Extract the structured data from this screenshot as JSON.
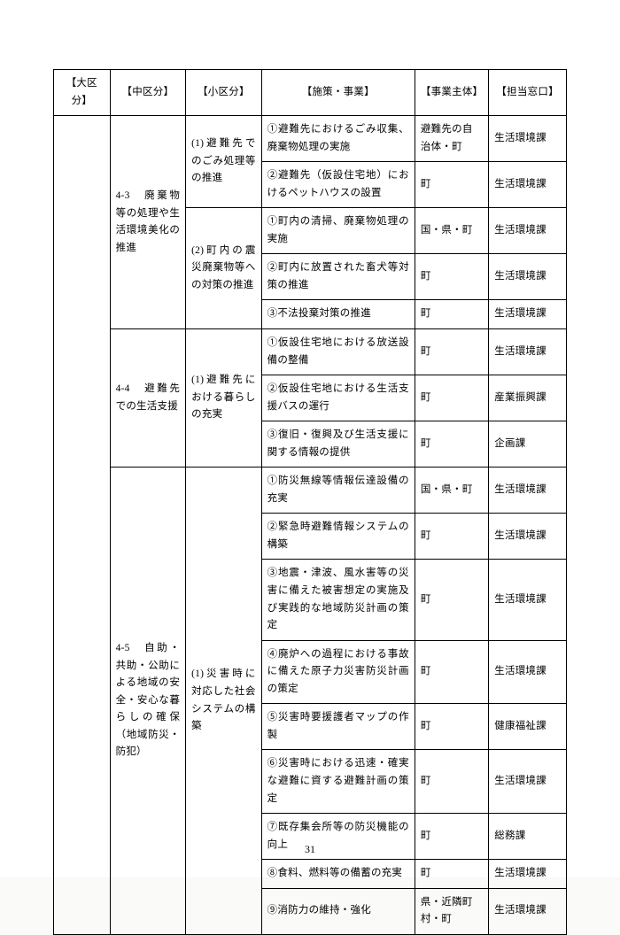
{
  "page_number": "31",
  "headers": {
    "large": "【大区分】",
    "mid": "【中区分】",
    "small": "【小区分】",
    "item": "【施策・事業】",
    "owner": "【事業主体】",
    "dept": "【担当窓口】"
  },
  "sections": [
    {
      "mid": "4-3　廃棄物等の処理や生活環境美化の推進",
      "subs": [
        {
          "small": "(1)避難先でのごみ処理等の推進",
          "rows": [
            {
              "item": "①避難先におけるごみ収集、廃棄物処理の実施",
              "owner": "避難先の自治体・町",
              "dept": "生活環境課"
            },
            {
              "item": "②避難先（仮設住宅地）におけるペットハウスの設置",
              "owner": "町",
              "dept": "生活環境課"
            }
          ]
        },
        {
          "small": "(2)町内の震災廃棄物等への対策の推進",
          "rows": [
            {
              "item": "①町内の清掃、廃棄物処理の実施",
              "owner": "国・県・町",
              "dept": "生活環境課"
            },
            {
              "item": "②町内に放置された畜犬等対策の推進",
              "owner": "町",
              "dept": "生活環境課"
            },
            {
              "item": "③不法投棄対策の推進",
              "owner": "町",
              "dept": "生活環境課"
            }
          ]
        }
      ]
    },
    {
      "mid": "4-4　避難先での生活支援",
      "subs": [
        {
          "small": "(1)避難先における暮らしの充実",
          "rows": [
            {
              "item": "①仮設住宅地における放送設備の整備",
              "owner": "町",
              "dept": "生活環境課"
            },
            {
              "item": "②仮設住宅地における生活支援バスの運行",
              "owner": "町",
              "dept": "産業振興課"
            },
            {
              "item": "③復旧・復興及び生活支援に関する情報の提供",
              "owner": "町",
              "dept": "企画課"
            }
          ]
        }
      ]
    },
    {
      "mid": "4-5　自助・共助・公助による地域の安全・安心な暮らしの確保（地域防災・防犯）",
      "subs": [
        {
          "small": "(1)災害時に対応した社会システムの構築",
          "rows": [
            {
              "item": "①防災無線等情報伝達設備の充実",
              "owner": "国・県・町",
              "dept": "生活環境課"
            },
            {
              "item": "②緊急時避難情報システムの構築",
              "owner": "町",
              "dept": "生活環境課"
            },
            {
              "item": "③地震・津波、風水害等の災害に備えた被害想定の実施及び実践的な地域防災計画の策定",
              "owner": "町",
              "dept": "生活環境課"
            },
            {
              "item": "④廃炉への過程における事故に備えた原子力災害防災計画の策定",
              "owner": "町",
              "dept": "生活環境課"
            },
            {
              "item": "⑤災害時要援護者マップの作製",
              "owner": "町",
              "dept": "健康福祉課"
            },
            {
              "item": "⑥災害時における迅速・確実な避難に資する避難計画の策定",
              "owner": "町",
              "dept": "生活環境課"
            },
            {
              "item": "⑦既存集会所等の防災機能の向上",
              "owner": "町",
              "dept": "総務課"
            },
            {
              "item": "⑧食料、燃料等の備蓄の充実",
              "owner": "町",
              "dept": "生活環境課"
            },
            {
              "item": "⑨消防力の維持・強化",
              "owner": "県・近隣町村・町",
              "dept": "生活環境課"
            }
          ]
        }
      ]
    }
  ]
}
